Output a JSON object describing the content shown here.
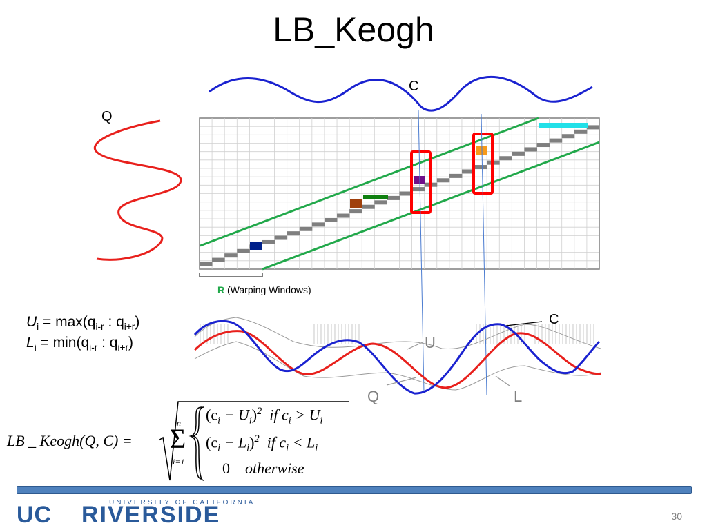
{
  "slide": {
    "title": "LB_Keogh",
    "page_number": "30"
  },
  "matrix": {
    "q_label": "Q",
    "c_label": "C",
    "r_bold": "R",
    "r_rest": "(Warping Windows)",
    "colors": {
      "q_series": "#e8201c",
      "c_series": "#1a22d0",
      "band": "#21a84a",
      "path": "#7f7f7f",
      "box": "#ff0000",
      "cyan": "#22e0e8",
      "navy": "#00208a",
      "brown": "#a0400c",
      "green_seg": "#108010",
      "purple": "#70108a",
      "orange": "#f79a1a"
    }
  },
  "envelope": {
    "c_label": "C",
    "u_label": "U",
    "q_label": "Q",
    "l_label": "L"
  },
  "definitions": {
    "u_var": "U",
    "u_sub": "i",
    "u_eq": " = max(q",
    "u_arg1": "i-r",
    "u_sep": " : q",
    "u_arg2": "i+r",
    "u_close": ")",
    "l_var": "L",
    "l_sub": "i",
    "l_eq": "  = min(q",
    "l_arg1": "i-r",
    "l_sep": " : q",
    "l_arg2": "i+r",
    "l_close": ")"
  },
  "formula": {
    "lhs": "LB _ Keogh(Q, C) =",
    "sum_top": "n",
    "sum_bottom": "i=1",
    "case1_expr": "(c",
    "case1_i": "i",
    "case1_minus": " − U",
    "case1_i2": "i",
    "case1_close": ")",
    "case1_exp": "2",
    "case1_cond": "if c",
    "case1_ci": "i",
    "case1_op": " > U",
    "case1_ui": "i",
    "case2_expr": "(c",
    "case2_i": "i",
    "case2_minus": " − L",
    "case2_i2": "i",
    "case2_close": ")",
    "case2_exp": "2",
    "case2_cond": "if c",
    "case2_ci": "i",
    "case2_op": " < L",
    "case2_li": "i",
    "case3_val": "0",
    "case3_cond": "otherwise"
  },
  "logo": {
    "top_text": "UNIVERSITY OF CALIFORNIA",
    "uc": "UC",
    "riverside": "RIVERSIDE"
  }
}
